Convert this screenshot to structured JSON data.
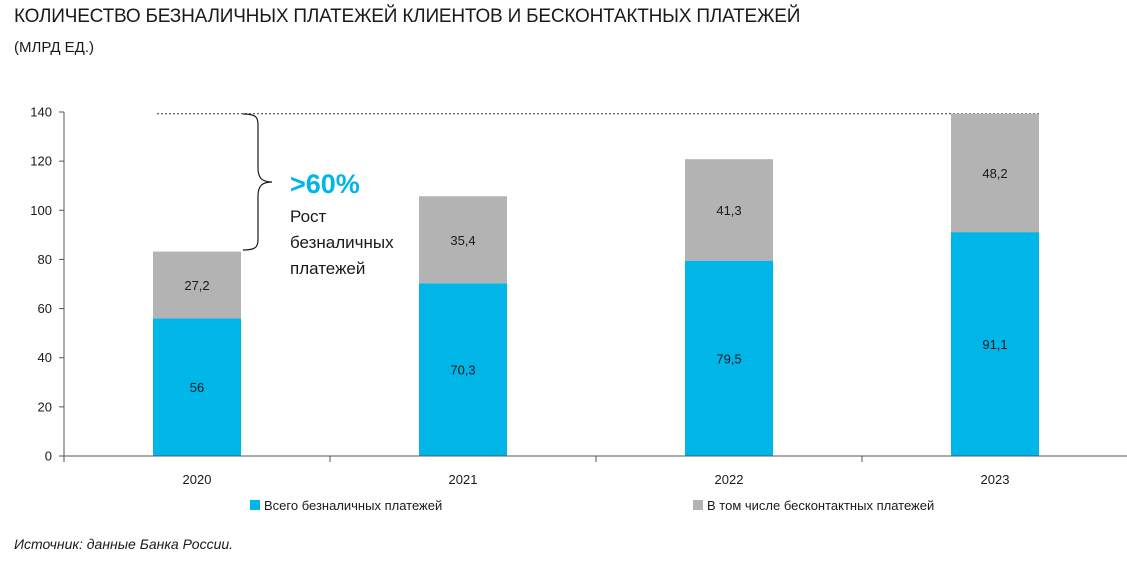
{
  "header": {
    "title": "КОЛИЧЕСТВО БЕЗНАЛИЧНЫХ ПЛАТЕЖЕЙ КЛИЕНТОВ И БЕСКОНТАКТНЫХ ПЛАТЕЖЕЙ",
    "subtitle": "(МЛРД ЕД.)"
  },
  "footer": {
    "source": "Источник: данные Банка России."
  },
  "annotation": {
    "growth": ">60%",
    "lines": [
      "Рост",
      "безналичных",
      "платежей"
    ]
  },
  "colors": {
    "total": "#00b5e8",
    "contactless": "#b3b3b3",
    "accent_text": "#00b5e8"
  },
  "chart_data": {
    "type": "bar",
    "stacked": true,
    "categories": [
      "2020",
      "2021",
      "2022",
      "2023"
    ],
    "series": [
      {
        "name": "Всего безналичных платежей",
        "values": [
          56,
          70.3,
          79.5,
          91.1
        ],
        "labels": [
          "56",
          "70,3",
          "79,5",
          "91,1"
        ]
      },
      {
        "name": "В том числе бесконтактных платежей",
        "values": [
          27.2,
          35.4,
          41.3,
          48.2
        ],
        "labels": [
          "27,2",
          "35,4",
          "41,3",
          "48,2"
        ]
      }
    ],
    "ylim": [
      0,
      140
    ],
    "yticks": [
      0,
      20,
      40,
      60,
      80,
      100,
      120,
      140
    ],
    "legend": "bottom",
    "title": "КОЛИЧЕСТВО БЕЗНАЛИЧНЫХ ПЛАТЕЖЕЙ КЛИЕНТОВ И БЕСКОНТАКТНЫХ ПЛАТЕЖЕЙ"
  }
}
